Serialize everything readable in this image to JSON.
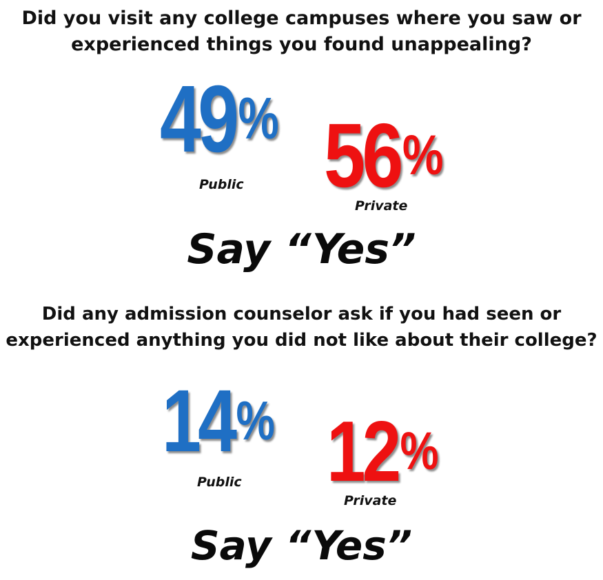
{
  "section1": {
    "question_line1": "Did you visit any college campuses where you saw or",
    "question_line2": "experienced things you found unappealing?",
    "public": {
      "value": "49",
      "percent_sign": "%",
      "label": "Public"
    },
    "private": {
      "value": "56",
      "percent_sign": "%",
      "label": "Private"
    },
    "answer": "Say “Yes”"
  },
  "section2": {
    "question_line1": "Did any admission counselor ask if you had seen or",
    "question_line2": "experienced anything you did not like about their college?",
    "public": {
      "value": "14",
      "percent_sign": "%",
      "label": "Public"
    },
    "private": {
      "value": "12",
      "percent_sign": "%",
      "label": "Private"
    },
    "answer": "Say “Yes”"
  },
  "colors": {
    "public": "#1f6fc4",
    "private": "#ee1111",
    "text": "#111111"
  }
}
